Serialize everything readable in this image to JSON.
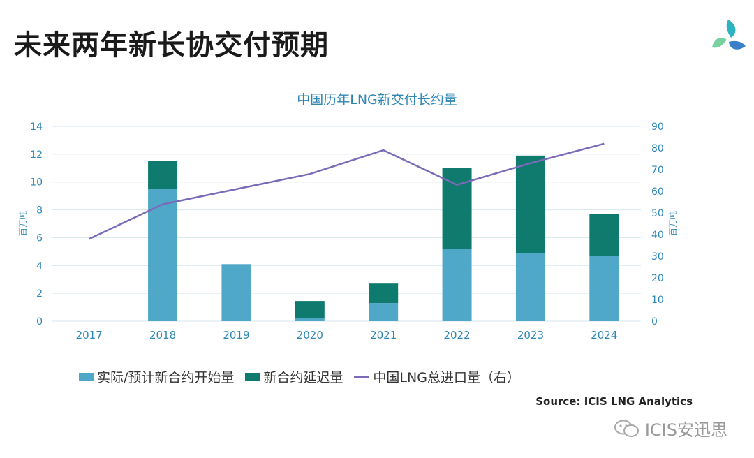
{
  "slide": {
    "title": "未来两年新长协交付预期",
    "source": "Source: ICIS LNG Analytics",
    "watermark": "ICIS安迅思"
  },
  "colors": {
    "actual": "#4fa8c8",
    "delayed": "#0f7a6e",
    "line": "#7b6ab8",
    "axis_text": "#2e86b5",
    "grid": "#d6e6ef"
  },
  "chart_data": {
    "type": "bar",
    "title": "中国历年LNG新交付长约量",
    "categories": [
      "2017",
      "2018",
      "2019",
      "2020",
      "2021",
      "2022",
      "2023",
      "2024"
    ],
    "series": [
      {
        "name": "实际/预计新合约开始量",
        "kind": "bar-stacked",
        "axis": "left",
        "values": [
          0,
          9.5,
          4.1,
          0.2,
          1.3,
          5.2,
          4.9,
          4.7
        ]
      },
      {
        "name": "新合约延迟量",
        "kind": "bar-stacked",
        "axis": "left",
        "values": [
          0,
          2.0,
          0,
          1.25,
          1.4,
          5.8,
          7.0,
          3.0
        ]
      },
      {
        "name": "中国LNG总进口量（右）",
        "kind": "line",
        "axis": "right",
        "values": [
          38,
          54,
          61,
          68,
          79,
          63,
          73,
          82
        ]
      }
    ],
    "ylabel": "百万吨",
    "y2label": "百万吨",
    "ylim": [
      0,
      14
    ],
    "y2lim": [
      0,
      90
    ],
    "yticks": [
      0,
      2,
      4,
      6,
      8,
      10,
      12,
      14
    ],
    "y2ticks": [
      0,
      10,
      20,
      30,
      40,
      50,
      60,
      70,
      80,
      90
    ],
    "grid": true,
    "legend": "bottom"
  }
}
